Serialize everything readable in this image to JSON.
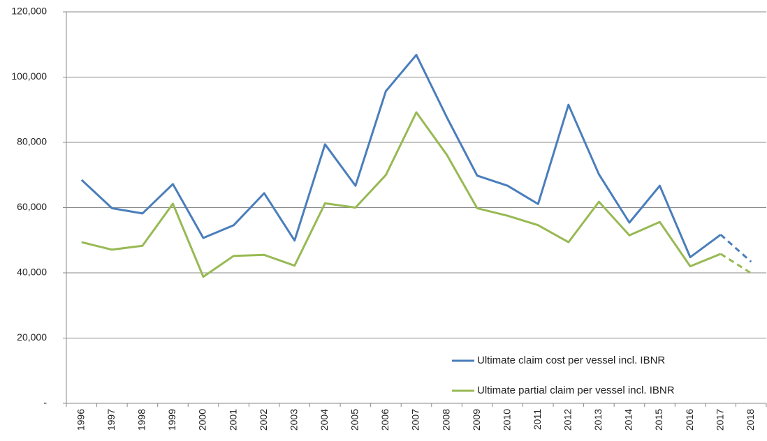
{
  "chart_data": {
    "type": "line",
    "categories": [
      "1996",
      "1997",
      "1998",
      "1999",
      "2000",
      "2001",
      "2002",
      "2003",
      "2004",
      "2005",
      "2006",
      "2007",
      "2008",
      "2009",
      "2010",
      "2011",
      "2012",
      "2013",
      "2014",
      "2015",
      "2016",
      "2017",
      "2018"
    ],
    "series": [
      {
        "name": "Ultimate claim cost per vessel incl. IBNR",
        "color": "#4a7ebb",
        "dashed_last": true,
        "values": [
          68500,
          59800,
          58200,
          67200,
          50700,
          54600,
          64400,
          49900,
          79400,
          66700,
          95700,
          106800,
          87700,
          69800,
          66700,
          61100,
          91500,
          70200,
          55400,
          66700,
          44800,
          51700,
          43400
        ]
      },
      {
        "name": "Ultimate partial claim per vessel incl. IBNR",
        "color": "#98b954",
        "dashed_last": true,
        "values": [
          49400,
          47100,
          48300,
          61200,
          38800,
          45200,
          45500,
          42200,
          61300,
          60000,
          70000,
          89200,
          76200,
          59800,
          57500,
          54600,
          49400,
          61800,
          51500,
          55600,
          42000,
          45800,
          39900
        ]
      }
    ],
    "ylim": [
      0,
      120000
    ],
    "yticks": [
      {
        "value": 0,
        "label": "-"
      },
      {
        "value": 20000,
        "label": "20,000"
      },
      {
        "value": 40000,
        "label": "40,000"
      },
      {
        "value": 60000,
        "label": "60,000"
      },
      {
        "value": 80000,
        "label": "80,000"
      },
      {
        "value": 100000,
        "label": "100,000"
      },
      {
        "value": 120000,
        "label": "120,000"
      }
    ],
    "grid": true,
    "legend": "lower right"
  }
}
